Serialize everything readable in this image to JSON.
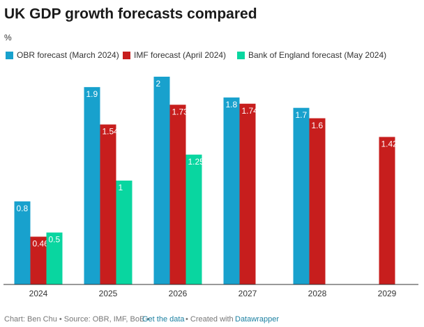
{
  "chart_data": {
    "type": "bar",
    "title": "UK GDP growth forecasts compared",
    "subtitle": "%",
    "categories": [
      "2024",
      "2025",
      "2026",
      "2027",
      "2028",
      "2029"
    ],
    "series": [
      {
        "name": "OBR forecast (March 2024)",
        "color": "#18a1cd",
        "values": [
          0.8,
          1.9,
          2,
          1.8,
          1.7,
          null
        ]
      },
      {
        "name": "IMF forecast (April 2024)",
        "color": "#c71e1d",
        "values": [
          0.46,
          1.54,
          1.73,
          1.74,
          1.6,
          1.42
        ]
      },
      {
        "name": "Bank of England forecast (May 2024)",
        "color": "#09d6a0",
        "values": [
          0.5,
          1,
          1.25,
          null,
          null,
          null
        ]
      }
    ],
    "ylim": [
      0,
      2
    ],
    "footer": {
      "source": "Chart: Ben Chu • Source: OBR, IMF, BoE •",
      "data_link": "Get the data",
      "created": "• Created with",
      "tool_link": "Datawrapper"
    }
  }
}
